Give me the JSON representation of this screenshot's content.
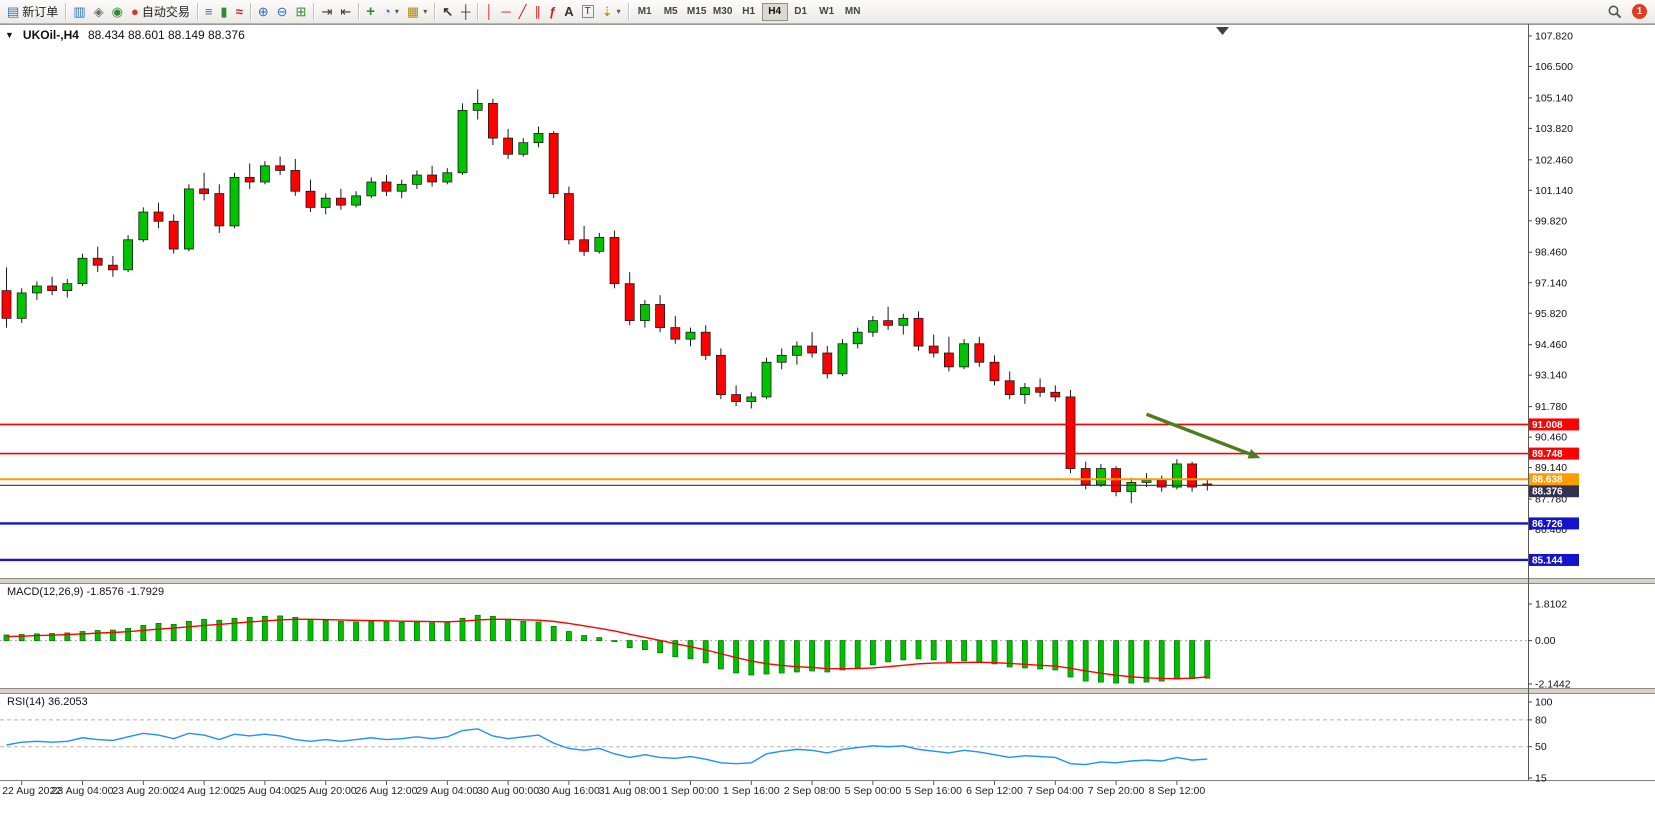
{
  "toolbar": {
    "new_order": {
      "label": "新订单",
      "glyph": "▤"
    },
    "market_watch_glyph": "▥",
    "navigator_glyph": "◈",
    "terminal_glyph": "◉",
    "autotrade": {
      "label": "自动交易",
      "glyph": "●"
    },
    "chart_bars_glyph": "≡",
    "chart_candles_glyph": "▮",
    "chart_line_glyph": "≈",
    "zoom_in_glyph": "⊕",
    "zoom_out_glyph": "⊖",
    "tile_glyph": "⊞",
    "autoscroll_glyph": "⇥",
    "shift_glyph": "⇤",
    "indicators_glyph": "+",
    "periods_glyph": "◔",
    "templates_glyph": "▦",
    "caret_glyph": "▾",
    "cursor_glyph": "↖",
    "crosshair_glyph": "┼",
    "vline_glyph": "│",
    "hline_glyph": "─",
    "trendline_glyph": "╱",
    "channel_glyph": "∥",
    "fibo_glyph": "ƒ",
    "text_glyph": "A",
    "textlabel_glyph": "T",
    "arrows_glyph": "⇣",
    "timeframes": {
      "items": [
        "M1",
        "M5",
        "M15",
        "M30",
        "H1",
        "H4",
        "D1",
        "W1",
        "MN"
      ],
      "active": "H4"
    },
    "badge_count": "1"
  },
  "chart": {
    "collapse_glyph": "▼",
    "symbol_period": "UKOil-,H4",
    "ohlc_values": "88.434 88.601 88.149 88.376"
  },
  "chart_data": {
    "type": "candlestick",
    "title": "UKOil-,H4",
    "symbol": "UKOil-",
    "timeframe": "H4",
    "current_bar": {
      "open": 88.434,
      "high": 88.601,
      "low": 88.149,
      "close": 88.376
    },
    "colors": {
      "up": "#00c300",
      "down": "#ff0000",
      "outline": "#1a1a1a",
      "macd_hist": "#00c000",
      "macd_signal": "#ff0000",
      "rsi": "#1e90ff"
    },
    "y_axis": [
      "107.820",
      "106.500",
      "105.140",
      "103.820",
      "102.460",
      "101.140",
      "99.820",
      "98.460",
      "97.140",
      "95.820",
      "94.460",
      "93.140",
      "91.780",
      "90.460",
      "89.140",
      "87.780",
      "86.460"
    ],
    "x_axis": {
      "labels": [
        "22 Aug 2022",
        "23 Aug 04:00",
        "23 Aug 20:00",
        "24 Aug 12:00",
        "25 Aug 04:00",
        "25 Aug 20:00",
        "26 Aug 12:00",
        "29 Aug 04:00",
        "30 Aug 00:00",
        "30 Aug 16:00",
        "31 Aug 08:00",
        "1 Sep 00:00",
        "1 Sep 16:00",
        "2 Sep 08:00",
        "5 Sep 00:00",
        "5 Sep 16:00",
        "6 Sep 12:00",
        "7 Sep 04:00",
        "7 Sep 20:00",
        "8 Sep 12:00"
      ],
      "first_label_bar": 1,
      "bars_per_label": 4
    },
    "candles": [
      [
        96.8,
        97.8,
        95.2,
        95.6
      ],
      [
        95.6,
        96.9,
        95.4,
        96.7
      ],
      [
        96.7,
        97.2,
        96.4,
        97.0
      ],
      [
        97.0,
        97.4,
        96.6,
        96.8
      ],
      [
        96.8,
        97.3,
        96.5,
        97.1
      ],
      [
        97.1,
        98.4,
        97.0,
        98.2
      ],
      [
        98.2,
        98.7,
        97.6,
        97.9
      ],
      [
        97.9,
        98.3,
        97.4,
        97.7
      ],
      [
        97.7,
        99.2,
        97.6,
        99.0
      ],
      [
        99.0,
        100.4,
        98.9,
        100.2
      ],
      [
        100.2,
        100.6,
        99.5,
        99.8
      ],
      [
        99.8,
        100.1,
        98.4,
        98.6
      ],
      [
        98.6,
        101.4,
        98.5,
        101.2
      ],
      [
        101.2,
        101.9,
        100.7,
        101.0
      ],
      [
        101.0,
        101.4,
        99.3,
        99.6
      ],
      [
        99.6,
        101.9,
        99.5,
        101.7
      ],
      [
        101.7,
        102.3,
        101.2,
        101.5
      ],
      [
        101.5,
        102.4,
        101.4,
        102.2
      ],
      [
        102.2,
        102.6,
        101.8,
        102.0
      ],
      [
        102.0,
        102.5,
        100.9,
        101.1
      ],
      [
        101.1,
        101.6,
        100.2,
        100.4
      ],
      [
        100.4,
        101.0,
        100.1,
        100.8
      ],
      [
        100.8,
        101.2,
        100.3,
        100.5
      ],
      [
        100.5,
        101.1,
        100.4,
        100.9
      ],
      [
        100.9,
        101.7,
        100.8,
        101.5
      ],
      [
        101.5,
        101.8,
        100.9,
        101.1
      ],
      [
        101.1,
        101.6,
        100.8,
        101.4
      ],
      [
        101.4,
        102.0,
        101.2,
        101.8
      ],
      [
        101.8,
        102.2,
        101.3,
        101.5
      ],
      [
        101.5,
        102.1,
        101.4,
        101.9
      ],
      [
        101.9,
        104.9,
        101.8,
        104.6
      ],
      [
        104.6,
        105.5,
        104.2,
        104.9
      ],
      [
        104.9,
        105.1,
        103.1,
        103.4
      ],
      [
        103.4,
        103.8,
        102.5,
        102.7
      ],
      [
        102.7,
        103.4,
        102.6,
        103.2
      ],
      [
        103.2,
        103.9,
        103.0,
        103.6
      ],
      [
        103.6,
        103.7,
        100.8,
        101.0
      ],
      [
        101.0,
        101.3,
        98.8,
        99.0
      ],
      [
        99.0,
        99.6,
        98.3,
        98.5
      ],
      [
        98.5,
        99.3,
        98.4,
        99.1
      ],
      [
        99.1,
        99.4,
        96.9,
        97.1
      ],
      [
        97.1,
        97.6,
        95.3,
        95.5
      ],
      [
        95.5,
        96.4,
        95.2,
        96.2
      ],
      [
        96.2,
        96.6,
        95.0,
        95.2
      ],
      [
        95.2,
        95.7,
        94.5,
        94.7
      ],
      [
        94.7,
        95.2,
        94.4,
        95.0
      ],
      [
        95.0,
        95.3,
        93.8,
        94.0
      ],
      [
        94.0,
        94.3,
        92.1,
        92.3
      ],
      [
        92.3,
        92.7,
        91.8,
        92.0
      ],
      [
        92.0,
        92.4,
        91.7,
        92.2
      ],
      [
        92.2,
        93.9,
        92.1,
        93.7
      ],
      [
        93.7,
        94.3,
        93.4,
        94.0
      ],
      [
        94.0,
        94.6,
        93.6,
        94.4
      ],
      [
        94.4,
        95.0,
        93.9,
        94.1
      ],
      [
        94.1,
        94.4,
        93.0,
        93.2
      ],
      [
        93.2,
        94.7,
        93.1,
        94.5
      ],
      [
        94.5,
        95.2,
        94.3,
        95.0
      ],
      [
        95.0,
        95.7,
        94.8,
        95.5
      ],
      [
        95.5,
        96.1,
        95.1,
        95.3
      ],
      [
        95.3,
        95.8,
        94.9,
        95.6
      ],
      [
        95.6,
        95.9,
        94.2,
        94.4
      ],
      [
        94.4,
        94.9,
        93.9,
        94.1
      ],
      [
        94.1,
        94.8,
        93.3,
        93.5
      ],
      [
        93.5,
        94.7,
        93.4,
        94.5
      ],
      [
        94.5,
        94.8,
        93.5,
        93.7
      ],
      [
        93.7,
        94.0,
        92.7,
        92.9
      ],
      [
        92.9,
        93.3,
        92.1,
        92.3
      ],
      [
        92.3,
        92.8,
        91.9,
        92.6
      ],
      [
        92.6,
        93.0,
        92.2,
        92.4
      ],
      [
        92.4,
        92.7,
        92.0,
        92.2
      ],
      [
        92.2,
        92.5,
        88.9,
        89.1
      ],
      [
        89.1,
        89.4,
        88.2,
        88.4
      ],
      [
        88.4,
        89.3,
        88.3,
        89.1
      ],
      [
        89.1,
        89.2,
        87.9,
        88.1
      ],
      [
        88.1,
        88.7,
        87.6,
        88.5
      ],
      [
        88.5,
        88.9,
        88.3,
        88.6
      ],
      [
        88.6,
        88.8,
        88.1,
        88.3
      ],
      [
        88.3,
        89.5,
        88.2,
        89.3
      ],
      [
        89.3,
        89.4,
        88.1,
        88.3
      ],
      [
        88.434,
        88.601,
        88.149,
        88.376
      ]
    ],
    "h_lines": [
      {
        "price": 91.008,
        "tag": "91.008",
        "color": "#ff0000",
        "w": 1.6
      },
      {
        "price": 89.748,
        "tag": "89.748",
        "color": "#ff0000",
        "w": 1.6
      },
      {
        "price": 88.638,
        "tag": "88.638",
        "color": "#ff9c00",
        "w": 2
      },
      {
        "price": 88.376,
        "tag": "88.376",
        "color": "#32324e",
        "w": 1.2
      },
      {
        "price": 86.726,
        "tag": "86.726",
        "color": "#1414cc",
        "w": 2.4
      },
      {
        "price": 85.144,
        "tag": "85.144",
        "color": "#1414cc",
        "w": 2.4
      }
    ],
    "arrow": {
      "from_bar": 75,
      "from_price": 91.45,
      "to_bar": 82.5,
      "to_price": 89.55,
      "color": "#4c7d21"
    },
    "macd": {
      "name": "MACD(12,26,9)",
      "values_label": "-1.8576 -1.7929",
      "full_label": "MACD(12,26,9) -1.8576 -1.7929",
      "scale_labels": [
        "1.8102",
        "0.00",
        "-2.1442"
      ],
      "histogram": [
        0.28,
        0.3,
        0.33,
        0.35,
        0.38,
        0.45,
        0.5,
        0.52,
        0.6,
        0.75,
        0.85,
        0.8,
        0.95,
        1.05,
        1.0,
        1.1,
        1.15,
        1.2,
        1.22,
        1.15,
        1.05,
        1.0,
        0.95,
        0.92,
        0.95,
        0.92,
        0.9,
        0.92,
        0.88,
        0.9,
        1.1,
        1.25,
        1.2,
        1.05,
        0.95,
        0.92,
        0.7,
        0.45,
        0.25,
        0.15,
        -0.05,
        -0.35,
        -0.45,
        -0.6,
        -0.8,
        -0.9,
        -1.1,
        -1.4,
        -1.6,
        -1.7,
        -1.65,
        -1.6,
        -1.55,
        -1.5,
        -1.55,
        -1.45,
        -1.35,
        -1.2,
        -1.05,
        -0.95,
        -0.9,
        -0.95,
        -1.05,
        -1.0,
        -1.05,
        -1.15,
        -1.3,
        -1.35,
        -1.4,
        -1.45,
        -1.8,
        -2.0,
        -2.05,
        -2.1,
        -2.1,
        -2.05,
        -2.0,
        -1.9,
        -1.88,
        -1.8576
      ],
      "signal": [
        0.2,
        0.22,
        0.25,
        0.27,
        0.3,
        0.33,
        0.37,
        0.4,
        0.44,
        0.5,
        0.57,
        0.62,
        0.68,
        0.75,
        0.8,
        0.86,
        0.92,
        0.97,
        1.02,
        1.05,
        1.05,
        1.04,
        1.02,
        1.0,
        0.99,
        0.98,
        0.96,
        0.95,
        0.94,
        0.93,
        0.96,
        1.02,
        1.05,
        1.05,
        1.03,
        1.01,
        0.95,
        0.85,
        0.73,
        0.61,
        0.48,
        0.31,
        0.16,
        0.01,
        -0.15,
        -0.3,
        -0.46,
        -0.65,
        -0.84,
        -1.01,
        -1.14,
        -1.23,
        -1.29,
        -1.33,
        -1.38,
        -1.39,
        -1.38,
        -1.35,
        -1.29,
        -1.22,
        -1.15,
        -1.11,
        -1.1,
        -1.08,
        -1.07,
        -1.09,
        -1.13,
        -1.17,
        -1.22,
        -1.26,
        -1.37,
        -1.5,
        -1.61,
        -1.71,
        -1.79,
        -1.84,
        -1.87,
        -1.88,
        -1.86,
        -1.7929
      ]
    },
    "rsi": {
      "name": "RSI(14)",
      "value_label": "36.2053",
      "full_label": "RSI(14) 36.2053",
      "scale_labels": [
        "100",
        "80",
        "50",
        "15"
      ],
      "levels": [
        80,
        50
      ],
      "values": [
        52,
        55,
        56,
        55,
        56,
        60,
        58,
        57,
        61,
        65,
        63,
        59,
        65,
        63,
        58,
        64,
        62,
        64,
        62,
        58,
        56,
        58,
        56,
        58,
        60,
        58,
        59,
        61,
        59,
        61,
        68,
        70,
        62,
        59,
        61,
        63,
        54,
        48,
        46,
        48,
        42,
        38,
        41,
        38,
        37,
        39,
        36,
        32,
        31,
        32,
        42,
        45,
        47,
        46,
        43,
        47,
        49,
        51,
        50,
        51,
        47,
        45,
        43,
        46,
        44,
        41,
        38,
        40,
        39,
        38,
        31,
        30,
        33,
        32,
        34,
        35,
        34,
        38,
        35,
        36.2
      ]
    }
  }
}
